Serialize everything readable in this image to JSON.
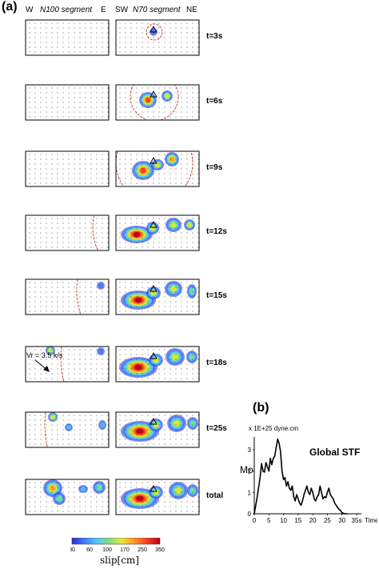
{
  "panel_a_label": "(a)",
  "panel_b_label": "(b)",
  "headers": {
    "w": "W",
    "n100": "N100 segment",
    "e": "E",
    "sw": "SW",
    "n70": "N70 segment",
    "ne": "NE"
  },
  "rows": [
    {
      "label": "t=3s"
    },
    {
      "label": "t=6s"
    },
    {
      "label": "t=9s"
    },
    {
      "label": "t=12s"
    },
    {
      "label": "t=15s"
    },
    {
      "label": "t=18s"
    },
    {
      "label": "t=25s"
    },
    {
      "label": "total"
    }
  ],
  "annotation_vr": "Vr = 3.5 k/s",
  "colorbar": {
    "label": "slip[cm]",
    "ticks": [
      "30",
      "60",
      "100",
      "170",
      "250",
      "350"
    ],
    "colors": [
      "#2b2bd6",
      "#3f7cff",
      "#58c4ff",
      "#7fe07f",
      "#e6e63a",
      "#ff9a2a",
      "#ff3b1f",
      "#b3001b"
    ]
  },
  "chart_data": {
    "type": "line",
    "title": "Global STF",
    "unit_label": "x 1E+25 dyne.cm",
    "ylabel": "Mo",
    "xlabel": "Time",
    "x_tick_labels": [
      "0",
      "5",
      "10",
      "15",
      "20",
      "25",
      "30",
      "35s"
    ],
    "y_tick_labels": [
      "0",
      "1",
      "2",
      "3"
    ],
    "xlim": [
      0,
      35
    ],
    "ylim": [
      0,
      3.6
    ],
    "x": [
      0,
      1,
      2,
      2.5,
      3,
      3.5,
      4,
      4.5,
      5,
      5.5,
      6,
      6.5,
      7,
      7.5,
      8,
      8.5,
      9,
      9.5,
      10,
      10.5,
      11,
      11.5,
      12,
      12.5,
      13,
      13.5,
      14,
      14.5,
      15,
      15.5,
      16,
      16.5,
      17,
      17.5,
      18,
      18.5,
      19,
      19.5,
      20,
      20.5,
      21,
      21.5,
      22,
      22.5,
      23,
      23.5,
      24,
      24.5,
      25,
      25.5,
      26,
      26.5,
      27,
      27.5,
      28,
      28.5,
      29,
      29.5,
      30,
      31,
      32
    ],
    "y": [
      0,
      0.8,
      1.7,
      2.35,
      2.0,
      1.95,
      2.4,
      2.2,
      2.0,
      2.6,
      2.3,
      2.6,
      2.7,
      3.1,
      3.5,
      3.3,
      2.9,
      2.0,
      1.6,
      1.7,
      1.3,
      1.5,
      1.2,
      1.1,
      1.3,
      0.8,
      0.6,
      0.9,
      0.7,
      0.5,
      0.4,
      0.6,
      0.9,
      1.1,
      1.3,
      1.0,
      0.9,
      1.2,
      1.0,
      0.7,
      0.6,
      0.8,
      0.9,
      1.3,
      1.0,
      0.7,
      0.8,
      0.75,
      1.0,
      1.2,
      0.9,
      0.8,
      0.7,
      0.5,
      0.4,
      0.3,
      0.2,
      0.15,
      0.05,
      0.0,
      0.0
    ]
  }
}
